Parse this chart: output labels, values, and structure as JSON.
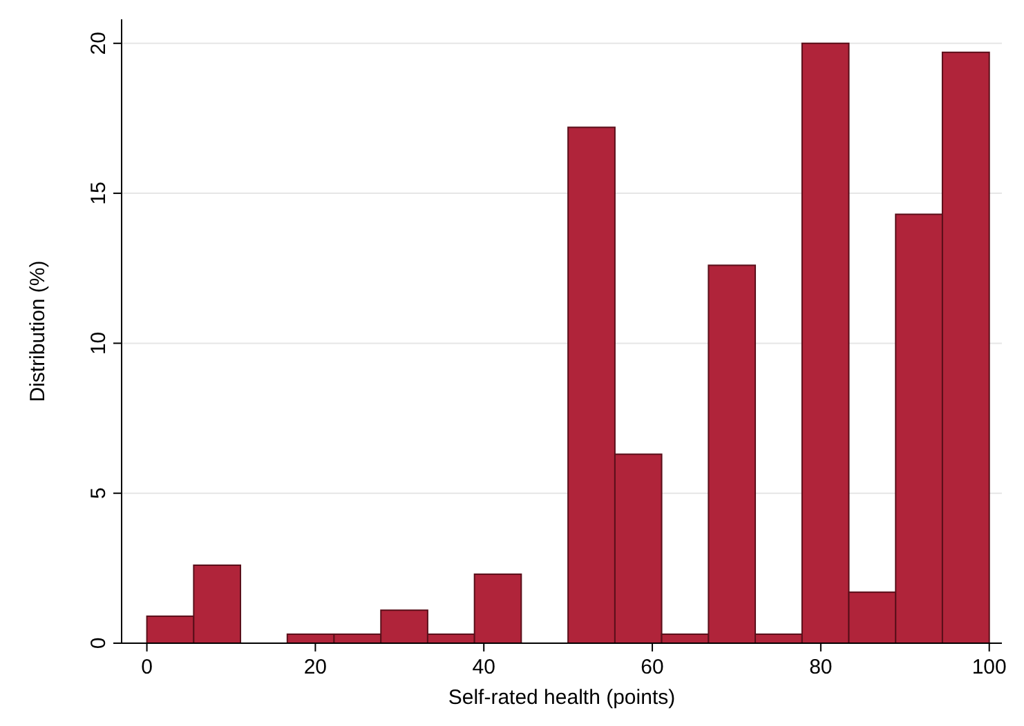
{
  "chart_data": {
    "type": "histogram",
    "xlabel": "Self-rated health (points)",
    "ylabel": "Distribution (%)",
    "bins": [
      0,
      5.56,
      11.11,
      16.67,
      22.22,
      27.78,
      33.33,
      38.89,
      44.44,
      50,
      55.56,
      61.11,
      66.67,
      72.22,
      77.78,
      83.33,
      88.89,
      94.44,
      100
    ],
    "values": [
      0.9,
      2.6,
      0,
      0.3,
      0.3,
      1.1,
      0.3,
      2.3,
      0,
      17.2,
      6.3,
      0.3,
      12.6,
      0.3,
      20,
      1.7,
      14.3,
      19.7
    ],
    "color": "#b0243a",
    "xlim": [
      -3,
      101.5
    ],
    "ylim": [
      0,
      20.8
    ],
    "xticks": [
      0,
      20,
      40,
      60,
      80,
      100
    ],
    "yticks": [
      0,
      5,
      10,
      15,
      20
    ],
    "grid": "y"
  }
}
